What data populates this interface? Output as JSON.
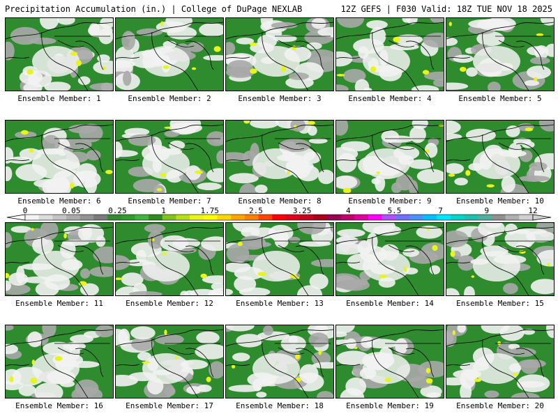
{
  "header": {
    "left": "Precipitation Accumulation (in.) | College of DuPage NEXLAB",
    "right": "12Z GEFS | F030 Valid: 18Z TUE NOV 18 2025"
  },
  "panels": [
    {
      "caption": "Ensemble Member: 1"
    },
    {
      "caption": "Ensemble Member: 2"
    },
    {
      "caption": "Ensemble Member: 3"
    },
    {
      "caption": "Ensemble Member: 4"
    },
    {
      "caption": "Ensemble Member: 5"
    },
    {
      "caption": "Ensemble Member: 6"
    },
    {
      "caption": "Ensemble Member: 7"
    },
    {
      "caption": "Ensemble Member: 8"
    },
    {
      "caption": "Ensemble Member: 9"
    },
    {
      "caption": "Ensemble Member: 10"
    },
    {
      "caption": "Ensemble Member: 11"
    },
    {
      "caption": "Ensemble Member: 12"
    },
    {
      "caption": "Ensemble Member: 13"
    },
    {
      "caption": "Ensemble Member: 14"
    },
    {
      "caption": "Ensemble Member: 15"
    },
    {
      "caption": "Ensemble Member: 16"
    },
    {
      "caption": "Ensemble Member: 17"
    },
    {
      "caption": "Ensemble Member: 18"
    },
    {
      "caption": "Ensemble Member: 19"
    },
    {
      "caption": "Ensemble Member: 20"
    }
  ],
  "colorbar": {
    "labels": [
      "0",
      "0.05",
      "0.25",
      "1",
      "1.75",
      "2.5",
      "3.25",
      "4",
      "5.5",
      "7",
      "9",
      "12"
    ],
    "colors": [
      "#f4f4f4",
      "#dcdcdc",
      "#c4c4c4",
      "#ababab",
      "#939393",
      "#7a7a7a",
      "#338a33",
      "#2c9e2c",
      "#3fb53f",
      "#2e8b1e",
      "#7fc31c",
      "#b4e01a",
      "#e8f518",
      "#ffff00",
      "#ffd700",
      "#ffa500",
      "#ff7f00",
      "#ff4500",
      "#ff0000",
      "#e0001c",
      "#c8001e",
      "#a8001a",
      "#960050",
      "#c0006e",
      "#e000a0",
      "#ff00ff",
      "#b050ff",
      "#7070ff",
      "#4a90ff",
      "#00bfff",
      "#00e5ff",
      "#00d5c8",
      "#20c0b0",
      "#50b0a0",
      "#909090",
      "#b0b0b0",
      "#d0d0d0"
    ],
    "land_color": "#2e8b2e",
    "light_color": "#f2f2f2",
    "shade_color": "#a8a8a8"
  }
}
